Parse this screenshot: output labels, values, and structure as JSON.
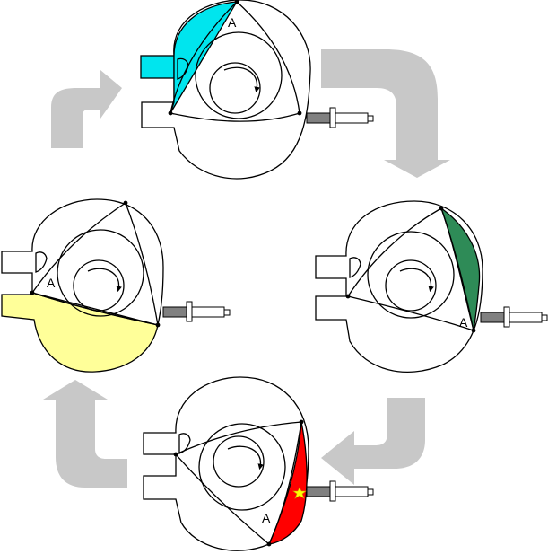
{
  "stages": [
    {
      "id": "intake",
      "chamber_label": "A",
      "fill": "#00e5ee"
    },
    {
      "id": "compression",
      "chamber_label": "A",
      "fill": "#2e8b57"
    },
    {
      "id": "combustion",
      "chamber_label": "A",
      "fill": "#ff0000",
      "spark": "#ffff00"
    },
    {
      "id": "exhaust",
      "chamber_label": "A",
      "fill": "#ffff99"
    }
  ],
  "colors": {
    "flow_arrow": "#c8c8c8",
    "spark_plug_body": "#808080",
    "outline": "#000000"
  },
  "icons": {
    "flow": "curved-arrow-icon",
    "rotation": "rotation-arrow-icon",
    "spark": "spark-star-icon"
  }
}
